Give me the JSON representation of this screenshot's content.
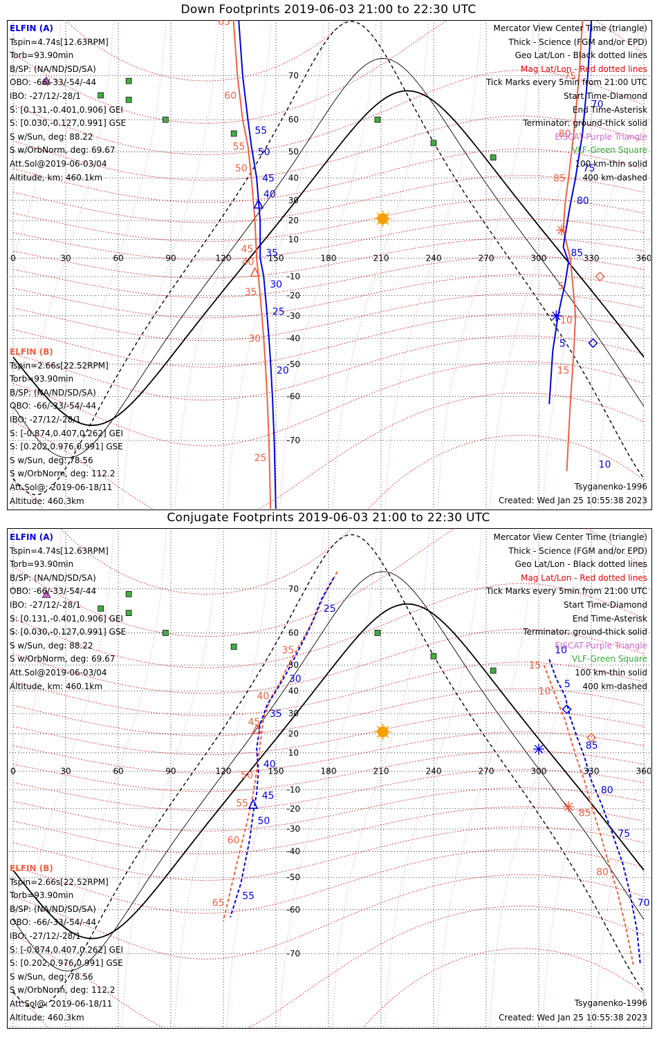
{
  "panels": [
    {
      "id": "down",
      "title": "Down Footprints 2019-06-03 21:00 to 22:30 UTC",
      "elfin_a": {
        "name": "ELFIN (A)",
        "lines": [
          "Tspin=4.74s[12.63RPM]",
          "Torb=93.90min",
          "B/SP: (NA/ND/SD/SA)",
          "OBO: -66/-33/-54/-44",
          "IBO: -27/12/-28/1",
          "S: [0.131,-0.401,0.906] GEI",
          "S: [0.030,-0.127,0.991] GSE",
          "S w/Sun, deg: 88.22",
          "S w/OrbNorm, deg: 69.67",
          "Att.Sol@2019-06-03/04",
          "Altitude, km: 460.1km"
        ]
      },
      "elfin_b": {
        "name": "ELFIN (B)",
        "lines": [
          "Tspin=2.66s[22.52RPM]",
          "Torb=93.90min",
          "B/SP: (NA/ND/SD/SA)",
          "OBO: -66/-33/-54/-44",
          "IBO: -27/12/-28/1",
          "S: [-0.874,0.407,0.262] GEI",
          "S: [0.202,0.976,0.991] GSE",
          "S w/Sun, deg: 78.56",
          "S w/OrbNorm, deg: 112.2",
          "Att.Sol@: 2019-06-18/11",
          "Altitude: 460.3km"
        ]
      },
      "model": "Tsyganenko-1996",
      "created": "Created: Wed Jan 25 10:55:38 2023"
    },
    {
      "id": "conjugate",
      "title": "Conjugate Footprints 2019-06-03 21:00 to 22:30 UTC",
      "elfin_a": {
        "name": "ELFIN (A)",
        "lines": [
          "Tspin=4.74s[12.63RPM]",
          "Torb=93.90min",
          "B/SP: (NA/ND/SD/SA)",
          "OBO: -66/-33/-54/-44",
          "IBO: -27/12/-28/1",
          "S: [0.131,-0.401,0.906] GEI",
          "S: [0.030,-0.127,0.991] GSE",
          "S w/Sun, deg: 88.22",
          "S w/OrbNorm, deg: 69.67",
          "Att.Sol@2019-06-03/04",
          "Altitude, km: 460.1km"
        ]
      },
      "elfin_b": {
        "name": "ELFIN (B)",
        "lines": [
          "Tspin=2.66s[22.52RPM]",
          "Torb=93.90min",
          "B/SP: (NA/ND/SD/SA)",
          "OBO: -66/-33/-54/-44",
          "IBO: -27/12/-28/1",
          "S: [-0.874,0.407,0.262] GEI",
          "S: [0.202,0.976,0.991] GSE",
          "S w/Sun, deg: 78.56",
          "S w/OrbNorm, deg: 112.2",
          "Att.Sol@: 2019-06-18/11",
          "Altitude: 460.3km"
        ]
      },
      "model": "Tsyganenko-1996",
      "created": "Created: Wed Jan 25 10:55:38 2023"
    }
  ],
  "legend": [
    {
      "text": "Mercator View Center Time (triangle)",
      "color": "#000000"
    },
    {
      "text": "Thick - Science (FGM and/or EPD)",
      "color": "#000000"
    },
    {
      "text": "Geo Lat/Lon - Black dotted lines",
      "color": "#000000"
    },
    {
      "text": "Mag Lat/Lon - Red dotted lines",
      "color": "#e00000"
    },
    {
      "text": "Tick Marks every 5min from 21:00 UTC",
      "color": "#000000"
    },
    {
      "text": "Start Time-Diamond",
      "color": "#000000"
    },
    {
      "text": "End Time-Asterisk",
      "color": "#000000"
    },
    {
      "text": "Terminator: ground-thick solid",
      "color": "#000000"
    },
    {
      "text": "EISCAT-Purple Triangle",
      "color": "#cc66cc"
    },
    {
      "text": "VLF-Green Square",
      "color": "#33aa33"
    },
    {
      "text": "100 km-thin solid",
      "color": "#000000"
    },
    {
      "text": "400 km-dashed",
      "color": "#000000"
    }
  ],
  "axes": {
    "lon_ticks": [
      "0",
      "30",
      "60",
      "90",
      "120",
      "150",
      "180",
      "210",
      "240",
      "270",
      "300",
      "330",
      "360"
    ],
    "lat_ticks": [
      "70",
      "60",
      "50",
      "40",
      "30",
      "20",
      "10",
      "-10",
      "-20",
      "-30",
      "-40",
      "-50",
      "-60",
      "-70"
    ]
  },
  "colors": {
    "elfin_a": "#0000dd",
    "elfin_b": "#f06040",
    "mag_grid": "#e00000",
    "geo_grid": "#000000",
    "eiscat": "#cc66cc",
    "vlf": "#44aa44",
    "sun": "#f5a000"
  },
  "markers": {
    "vlf_stations": [
      [
        66,
        69
      ],
      [
        66,
        65
      ],
      [
        87,
        60
      ],
      [
        126,
        56
      ],
      [
        208,
        60
      ],
      [
        240,
        53
      ],
      [
        274,
        48
      ],
      [
        50,
        66
      ]
    ],
    "eiscat_stations": [
      [
        19,
        69
      ],
      [
        19,
        69
      ]
    ],
    "sun": [
      211,
      21
    ]
  },
  "tracks_down": {
    "a": {
      "lon": [
        128,
        131,
        134,
        136,
        139,
        140,
        141,
        141,
        143,
        144,
        145,
        146,
        147,
        148,
        149,
        150
      ],
      "lat": [
        80,
        70,
        60,
        52,
        40,
        30,
        20,
        0,
        -10,
        -20,
        -30,
        -40,
        -50,
        -60,
        -70,
        -80
      ],
      "labels": [
        [
          "55",
          57
        ],
        [
          "50",
          50
        ],
        [
          "45",
          40
        ],
        [
          "40",
          33
        ],
        [
          "35",
          3
        ],
        [
          "30",
          -14
        ],
        [
          "25",
          -28
        ],
        [
          "20",
          -52
        ]
      ]
    },
    "b": {
      "lon": [
        125,
        128,
        131,
        134,
        136,
        137,
        138,
        139,
        140,
        141,
        142,
        143,
        144,
        145,
        146,
        147
      ],
      "lat": [
        80,
        70,
        60,
        52,
        40,
        30,
        20,
        0,
        -10,
        -20,
        -30,
        -40,
        -50,
        -60,
        -70,
        -80
      ],
      "labels": [
        [
          "65",
          78
        ],
        [
          "60",
          66
        ],
        [
          "55",
          52
        ],
        [
          "50",
          44
        ],
        [
          "45",
          5
        ],
        [
          "40",
          -2
        ],
        [
          "35",
          -18
        ],
        [
          "30",
          -40
        ],
        [
          "25",
          -73
        ]
      ]
    },
    "a2": {
      "lon": [
        331,
        330,
        328,
        325,
        321,
        318,
        315,
        314,
        317,
        315,
        313,
        311,
        308,
        306
      ],
      "lat": [
        85,
        78,
        70,
        56,
        40,
        28,
        12,
        6,
        -2,
        -14,
        -22,
        -30,
        -45,
        -62
      ],
      "labels": [
        [
          "65",
          82
        ],
        [
          "70",
          64
        ],
        [
          "75",
          44
        ],
        [
          "80",
          30
        ],
        [
          "85",
          3
        ],
        [
          "10",
          -74
        ],
        [
          "5",
          -42
        ]
      ]
    },
    "b2": {
      "lon": [
        326,
        325,
        323,
        320,
        317,
        315,
        314,
        318,
        319,
        320,
        321,
        320,
        318,
        316
      ],
      "lat": [
        85,
        78,
        70,
        56,
        40,
        28,
        15,
        0,
        -10,
        -20,
        -30,
        -45,
        -62,
        -75
      ],
      "labels": [
        [
          "75",
          70
        ],
        [
          "80",
          56
        ],
        [
          "85",
          40
        ],
        [
          "5",
          -15
        ],
        [
          "10",
          -32
        ],
        [
          "15",
          -52
        ]
      ]
    }
  },
  "tracks_conj": {
    "a": {
      "lon": [
        183,
        176,
        170,
        163,
        156,
        150,
        145,
        141,
        139,
        140,
        139,
        137,
        135,
        130,
        124
      ],
      "lat": [
        72,
        68,
        62,
        55,
        47,
        40,
        34,
        25,
        12,
        0,
        -12,
        -22,
        -35,
        -52,
        -62
      ],
      "labels": [
        [
          "25",
          66
        ],
        [
          "30",
          45
        ],
        [
          "35",
          30
        ],
        [
          "40",
          4
        ],
        [
          "45",
          -13
        ],
        [
          "50",
          -26
        ],
        [
          "55",
          -56
        ]
      ]
    },
    "b": {
      "lon": [
        185,
        178,
        171,
        164,
        157,
        152,
        147,
        143,
        141,
        139,
        137,
        134,
        130,
        125,
        120
      ],
      "lat": [
        73,
        69,
        63,
        57,
        50,
        43,
        37,
        28,
        15,
        0,
        -12,
        -25,
        -38,
        -52,
        -63
      ],
      "labels": [
        [
          "35",
          55
        ],
        [
          "40",
          38
        ],
        [
          "45",
          26
        ],
        [
          "50",
          -2
        ],
        [
          "55",
          -17
        ],
        [
          "60",
          -35
        ],
        [
          "65",
          -58
        ]
      ]
    },
    "a2": {
      "lon": [
        306,
        310,
        315,
        318,
        322,
        326,
        330,
        336,
        342,
        348,
        352,
        356,
        358
      ],
      "lat": [
        52,
        45,
        38,
        28,
        18,
        8,
        -5,
        -18,
        -32,
        -45,
        -55,
        -65,
        -72
      ],
      "labels": [
        [
          "10",
          55
        ],
        [
          "5",
          43
        ],
        [
          "85",
          14
        ],
        [
          "80",
          -10
        ],
        [
          "75",
          -32
        ],
        [
          "70",
          -58
        ]
      ]
    },
    "b2": {
      "lon": [
        303,
        307,
        311,
        315,
        318,
        322,
        326,
        330,
        335,
        340,
        345,
        350,
        354
      ],
      "lat": [
        50,
        43,
        35,
        27,
        18,
        6,
        -5,
        -18,
        -32,
        -45,
        -55,
        -65,
        -72
      ],
      "labels": [
        [
          "15",
          50
        ],
        [
          "10",
          40
        ],
        [
          "85",
          -22
        ],
        [
          "80",
          -48
        ]
      ]
    }
  }
}
